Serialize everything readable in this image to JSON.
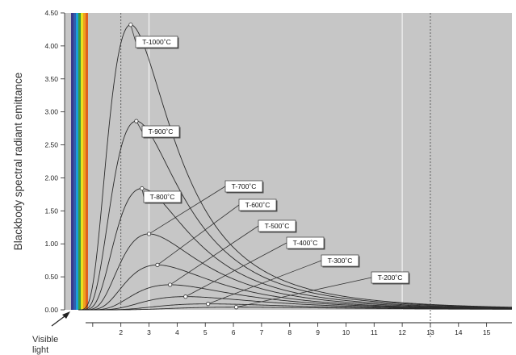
{
  "chart_data": {
    "type": "line",
    "ylabel": "Blackbody spectral radiant emittance",
    "xlabel": "",
    "xlim": [
      0,
      15.9
    ],
    "ylim": [
      0,
      4.5
    ],
    "y_ticks": [
      "0.00",
      "0.50",
      "1.00",
      "1.50",
      "2.00",
      "2.50",
      "3.00",
      "3.50",
      "4.00",
      "4.50"
    ],
    "x_ticks": [
      "2",
      "3",
      "4",
      "5",
      "6",
      "7",
      "8",
      "9",
      "10",
      "11",
      "12",
      "13",
      "14",
      "15"
    ],
    "visible_light_label": [
      "Visible",
      "light"
    ],
    "visible_band_colors": [
      "#3a3a8c",
      "#2f5fb0",
      "#1aa0d8",
      "#3c9a3c",
      "#e8e020",
      "#f0a020",
      "#e06020"
    ],
    "background_color": "#c6c6c6",
    "series": [
      {
        "name": "T-1000˚C",
        "peak": [
          2.35,
          4.32
        ]
      },
      {
        "name": "T-900˚C",
        "peak": [
          2.55,
          2.86
        ]
      },
      {
        "name": "T-800˚C",
        "peak": [
          2.75,
          1.84
        ]
      },
      {
        "name": "T-700˚C",
        "peak": [
          3.0,
          1.15
        ]
      },
      {
        "name": "T-600˚C",
        "peak": [
          3.3,
          0.68
        ]
      },
      {
        "name": "T-500˚C",
        "peak": [
          3.75,
          0.38
        ]
      },
      {
        "name": "T-400˚C",
        "peak": [
          4.3,
          0.2
        ]
      },
      {
        "name": "T-300˚C",
        "peak": [
          5.1,
          0.09
        ]
      },
      {
        "name": "T-200˚C",
        "peak": [
          6.1,
          0.04
        ]
      }
    ]
  }
}
